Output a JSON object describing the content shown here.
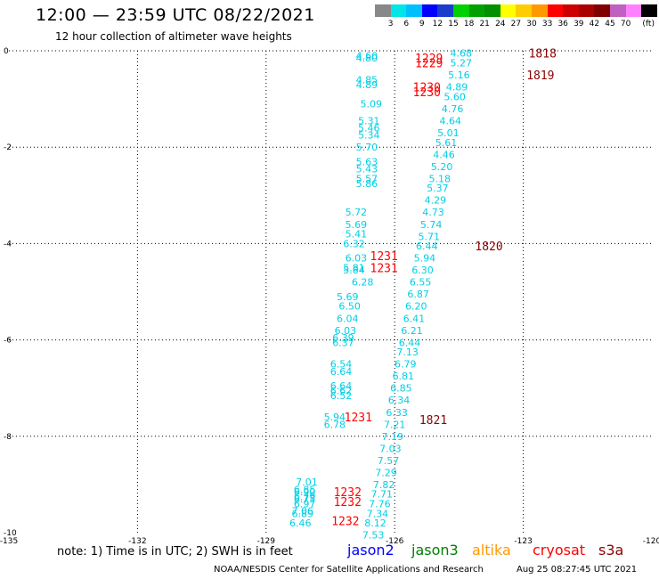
{
  "header": {
    "title": "12:00 — 23:59 UTC 08/22/2021",
    "subtitle": "12 hour collection of altimeter wave heights"
  },
  "colorbar": {
    "colors": [
      "#888888",
      "#00e6e6",
      "#00bfff",
      "#0000ff",
      "#1a3dcc",
      "#00d000",
      "#00a000",
      "#009000",
      "#ffff00",
      "#ffcc00",
      "#ff9900",
      "#ff0000",
      "#cc0000",
      "#aa0000",
      "#800000",
      "#c060c0",
      "#ff80ff",
      "#000000"
    ],
    "labels": [
      "3",
      "6",
      "9",
      "12",
      "15",
      "18",
      "21",
      "24",
      "27",
      "30",
      "33",
      "36",
      "39",
      "42",
      "45",
      "70",
      "(ft)"
    ]
  },
  "axes": {
    "x_ticks": [
      "-135",
      "-132",
      "-129",
      "-126",
      "-123",
      "-120"
    ],
    "y_ticks": [
      "0",
      "-2",
      "-4",
      "-6",
      "-8",
      "-10"
    ]
  },
  "chart_data": {
    "type": "scatter",
    "xlim": [
      -135,
      -120
    ],
    "ylim": [
      -10,
      0
    ],
    "grid": true,
    "units": "ft",
    "colors": {
      "swh": "#00cfe6",
      "time_cryosat": "#ff0000",
      "time_s3a": "#8b0000"
    },
    "track_left": [
      {
        "x": -126.65,
        "y": -0.1,
        "v": "4.60"
      },
      {
        "x": -126.65,
        "y": -0.15,
        "v": "4.80"
      },
      {
        "x": -126.65,
        "y": -0.6,
        "v": "4.85"
      },
      {
        "x": -126.65,
        "y": -0.7,
        "v": "4.89"
      },
      {
        "x": -126.55,
        "y": -1.1,
        "v": "5.09"
      },
      {
        "x": -126.6,
        "y": -1.45,
        "v": "5.31"
      },
      {
        "x": -126.6,
        "y": -1.6,
        "v": "5.46"
      },
      {
        "x": -126.6,
        "y": -1.75,
        "v": "5.34"
      },
      {
        "x": -126.65,
        "y": -2.0,
        "v": "5.70"
      },
      {
        "x": -126.65,
        "y": -2.3,
        "v": "5.63"
      },
      {
        "x": -126.65,
        "y": -2.45,
        "v": "5.43"
      },
      {
        "x": -126.65,
        "y": -2.65,
        "v": "5.57"
      },
      {
        "x": -126.65,
        "y": -2.75,
        "v": "5.86"
      },
      {
        "x": -126.9,
        "y": -3.35,
        "v": "5.72"
      },
      {
        "x": -126.9,
        "y": -3.6,
        "v": "5.69"
      },
      {
        "x": -126.9,
        "y": -3.8,
        "v": "5.41"
      },
      {
        "x": -126.95,
        "y": -4.0,
        "v": "6.32"
      },
      {
        "x": -126.9,
        "y": -4.3,
        "v": "6.03"
      },
      {
        "x": -126.95,
        "y": -4.5,
        "v": "5.81"
      },
      {
        "x": -126.95,
        "y": -4.55,
        "v": "5.84"
      },
      {
        "x": -126.75,
        "y": -4.8,
        "v": "6.28"
      },
      {
        "x": -127.1,
        "y": -5.1,
        "v": "5.69"
      },
      {
        "x": -127.05,
        "y": -5.3,
        "v": "6.50"
      },
      {
        "x": -127.1,
        "y": -5.55,
        "v": "6.04"
      },
      {
        "x": -127.15,
        "y": -5.8,
        "v": "6.03"
      },
      {
        "x": -127.2,
        "y": -5.95,
        "v": "6.39"
      },
      {
        "x": -127.2,
        "y": -6.05,
        "v": "6.37"
      },
      {
        "x": -127.25,
        "y": -6.5,
        "v": "6.54"
      },
      {
        "x": -127.25,
        "y": -6.65,
        "v": "6.64"
      },
      {
        "x": -127.25,
        "y": -6.95,
        "v": "6.64"
      },
      {
        "x": -127.25,
        "y": -7.05,
        "v": "6.62"
      },
      {
        "x": -127.25,
        "y": -7.15,
        "v": "6.52"
      },
      {
        "x": -127.4,
        "y": -7.6,
        "v": "5.94"
      },
      {
        "x": -127.4,
        "y": -7.75,
        "v": "6.78"
      },
      {
        "x": -128.05,
        "y": -8.95,
        "v": "7.01"
      },
      {
        "x": -128.1,
        "y": -9.1,
        "v": "6.85"
      },
      {
        "x": -128.1,
        "y": -9.15,
        "v": "6.90"
      },
      {
        "x": -128.1,
        "y": -9.25,
        "v": "6.79"
      },
      {
        "x": -128.1,
        "y": -9.3,
        "v": "6.75"
      },
      {
        "x": -128.1,
        "y": -9.4,
        "v": "6.97"
      },
      {
        "x": -128.15,
        "y": -9.55,
        "v": "7.06"
      },
      {
        "x": -128.15,
        "y": -9.6,
        "v": "6.89"
      },
      {
        "x": -128.2,
        "y": -9.8,
        "v": "6.46"
      }
    ],
    "track_right": [
      {
        "x": -124.45,
        "y": -0.05,
        "v": "4.68"
      },
      {
        "x": -124.45,
        "y": -0.25,
        "v": "5.27"
      },
      {
        "x": -124.5,
        "y": -0.5,
        "v": "5.16"
      },
      {
        "x": -124.55,
        "y": -0.75,
        "v": "4.89"
      },
      {
        "x": -124.6,
        "y": -0.95,
        "v": "5.60"
      },
      {
        "x": -124.65,
        "y": -1.2,
        "v": "4.76"
      },
      {
        "x": -124.7,
        "y": -1.45,
        "v": "4.64"
      },
      {
        "x": -124.75,
        "y": -1.7,
        "v": "5.01"
      },
      {
        "x": -124.8,
        "y": -1.9,
        "v": "5.61"
      },
      {
        "x": -124.85,
        "y": -2.15,
        "v": "4.46"
      },
      {
        "x": -124.9,
        "y": -2.4,
        "v": "5.20"
      },
      {
        "x": -124.95,
        "y": -2.65,
        "v": "5.18"
      },
      {
        "x": -125.0,
        "y": -2.85,
        "v": "5.37"
      },
      {
        "x": -125.05,
        "y": -3.1,
        "v": "4.29"
      },
      {
        "x": -125.1,
        "y": -3.35,
        "v": "4.73"
      },
      {
        "x": -125.15,
        "y": -3.6,
        "v": "5.74"
      },
      {
        "x": -125.2,
        "y": -3.85,
        "v": "5.71"
      },
      {
        "x": -125.25,
        "y": -4.05,
        "v": "6.44"
      },
      {
        "x": -125.3,
        "y": -4.3,
        "v": "5.94"
      },
      {
        "x": -125.35,
        "y": -4.55,
        "v": "6.30"
      },
      {
        "x": -125.4,
        "y": -4.8,
        "v": "6.55"
      },
      {
        "x": -125.45,
        "y": -5.05,
        "v": "6.87"
      },
      {
        "x": -125.5,
        "y": -5.3,
        "v": "6.20"
      },
      {
        "x": -125.55,
        "y": -5.55,
        "v": "6.41"
      },
      {
        "x": -125.6,
        "y": -5.8,
        "v": "6.21"
      },
      {
        "x": -125.65,
        "y": -6.05,
        "v": "6.44"
      },
      {
        "x": -125.7,
        "y": -6.25,
        "v": "7.13"
      },
      {
        "x": -125.75,
        "y": -6.5,
        "v": "6.79"
      },
      {
        "x": -125.8,
        "y": -6.75,
        "v": "6.81"
      },
      {
        "x": -125.85,
        "y": -7.0,
        "v": "6.85"
      },
      {
        "x": -125.9,
        "y": -7.25,
        "v": "6.34"
      },
      {
        "x": -125.95,
        "y": -7.5,
        "v": "6.33"
      },
      {
        "x": -126.0,
        "y": -7.75,
        "v": "7.21"
      },
      {
        "x": -126.05,
        "y": -8.0,
        "v": "7.19"
      },
      {
        "x": -126.1,
        "y": -8.25,
        "v": "7.03"
      },
      {
        "x": -126.15,
        "y": -8.5,
        "v": "7.57"
      },
      {
        "x": -126.2,
        "y": -8.75,
        "v": "7.29"
      },
      {
        "x": -126.25,
        "y": -9.0,
        "v": "7.82"
      },
      {
        "x": -126.3,
        "y": -9.2,
        "v": "7.71"
      },
      {
        "x": -126.35,
        "y": -9.4,
        "v": "7.76"
      },
      {
        "x": -126.4,
        "y": -9.6,
        "v": "7.34"
      },
      {
        "x": -126.45,
        "y": -9.8,
        "v": "8.12"
      },
      {
        "x": -126.5,
        "y": -10.05,
        "v": "7.53"
      }
    ],
    "time_labels": [
      {
        "x": -125.2,
        "y": -0.15,
        "t": "1229",
        "sat": "cryosat"
      },
      {
        "x": -125.2,
        "y": -0.25,
        "t": "1229",
        "sat": "cryosat"
      },
      {
        "x": -125.25,
        "y": -0.75,
        "t": "1230",
        "sat": "cryosat"
      },
      {
        "x": -125.25,
        "y": -0.85,
        "t": "1230",
        "sat": "cryosat"
      },
      {
        "x": -126.25,
        "y": -4.25,
        "t": "1231",
        "sat": "cryosat"
      },
      {
        "x": -126.25,
        "y": -4.5,
        "t": "1231",
        "sat": "cryosat"
      },
      {
        "x": -126.85,
        "y": -7.6,
        "t": "1231",
        "sat": "cryosat"
      },
      {
        "x": -127.1,
        "y": -9.15,
        "t": "1232",
        "sat": "cryosat"
      },
      {
        "x": -127.1,
        "y": -9.35,
        "t": "1232",
        "sat": "cryosat"
      },
      {
        "x": -127.15,
        "y": -9.75,
        "t": "1232",
        "sat": "cryosat"
      },
      {
        "x": -122.55,
        "y": -0.05,
        "t": "1818",
        "sat": "s3a"
      },
      {
        "x": -122.6,
        "y": -0.5,
        "t": "1819",
        "sat": "s3a"
      },
      {
        "x": -123.8,
        "y": -4.05,
        "t": "1820",
        "sat": "s3a"
      },
      {
        "x": -125.1,
        "y": -7.65,
        "t": "1821",
        "sat": "s3a"
      }
    ]
  },
  "note": "note: 1) Time is in UTC; 2) SWH is in feet",
  "legend": [
    {
      "name": "jason2",
      "color": "#0000ff"
    },
    {
      "name": "jason3",
      "color": "#008000"
    },
    {
      "name": "altika",
      "color": "#ff9900"
    },
    {
      "name": "cryosat",
      "color": "#ff0000"
    },
    {
      "name": "s3a",
      "color": "#8b0000"
    }
  ],
  "credit": "NOAA/NESDIS Center for Satellite Applications and Research",
  "timestamp": "Aug 25 08:27:45 UTC 2021"
}
